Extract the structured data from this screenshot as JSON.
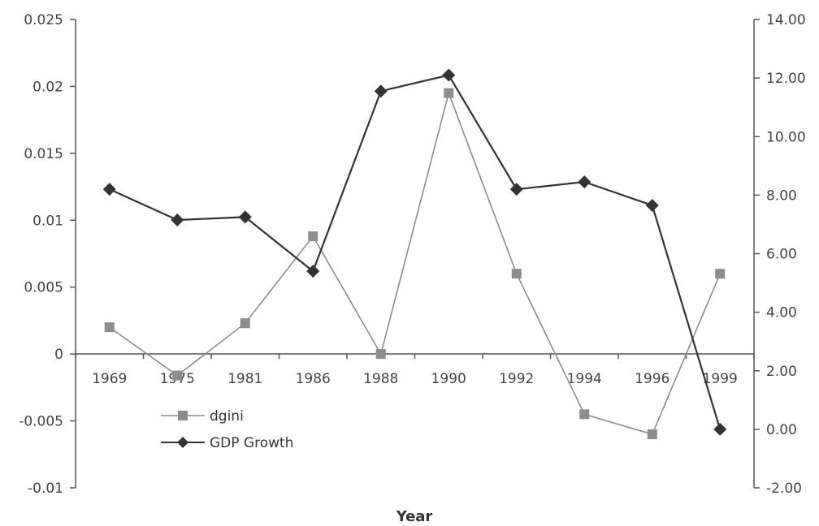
{
  "chart_data": {
    "type": "line",
    "categories": [
      "1969",
      "1975",
      "1981",
      "1986",
      "1988",
      "1990",
      "1992",
      "1994",
      "1996",
      "1999"
    ],
    "xlabel": "Year",
    "y_left": {
      "ylim": [
        -0.01,
        0.025
      ],
      "ticks": [
        "0.025",
        "0.02",
        "0.015",
        "0.01",
        "0.005",
        "0",
        "-0.005",
        "-0.01"
      ],
      "tick_values": [
        0.025,
        0.02,
        0.015,
        0.01,
        0.005,
        0,
        -0.005,
        -0.01
      ]
    },
    "y_right": {
      "ylim": [
        -2,
        14
      ],
      "ticks": [
        "14.00",
        "12.00",
        "10.00",
        "8.00",
        "6.00",
        "4.00",
        "2.00",
        "0.00",
        "-2.00"
      ],
      "tick_values": [
        14,
        12,
        10,
        8,
        6,
        4,
        2,
        0,
        -2
      ]
    },
    "series": [
      {
        "name": "dgini",
        "axis": "left",
        "marker": "square",
        "color": "#8c8c8c",
        "values": [
          0.002,
          -0.0016,
          0.0023,
          0.0088,
          0.0,
          0.0195,
          0.006,
          -0.0045,
          -0.006,
          0.006
        ]
      },
      {
        "name": "GDP Growth",
        "axis": "right",
        "marker": "diamond",
        "color": "#333333",
        "values": [
          8.2,
          7.15,
          7.25,
          5.4,
          11.55,
          12.1,
          8.2,
          8.45,
          7.65,
          0.0
        ]
      }
    ],
    "legend_position": "lower-left",
    "grid": false
  }
}
